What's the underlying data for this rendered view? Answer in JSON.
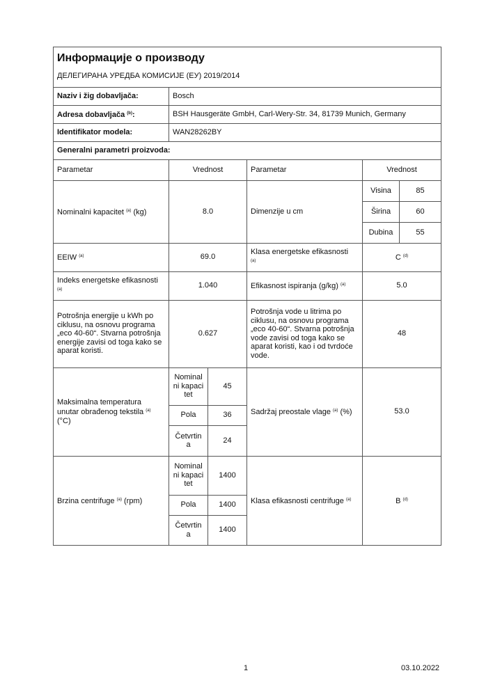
{
  "title": "Информације о производу",
  "regulation": "ДЕЛЕГИРАНА УРЕДБА КОМИСИЈЕ (ЕУ) 2019/2014",
  "supplier": {
    "name_label": "Naziv i žig dobavljača:",
    "name": "Bosch",
    "address_label": "Adresa dobavljača",
    "address_note": "(b)",
    "address": "BSH Hausgeräte GmbH, Carl-Wery-Str. 34, 81739 Munich, Germany",
    "model_label": "Identifikator modela:",
    "model": "WAN28262BY"
  },
  "general": {
    "heading": "Generalni parametri proizvoda:",
    "col_param": "Parametar",
    "col_value": "Vrednost"
  },
  "rows": {
    "capacity": {
      "label": "Nominalni kapacitet",
      "note": "(a)",
      "unit": "(kg)",
      "value": "8.0"
    },
    "dimensions": {
      "label": "Dimenzije u cm",
      "height_label": "Visina",
      "height": "85",
      "width_label": "Širina",
      "width": "60",
      "depth_label": "Dubina",
      "depth": "55"
    },
    "eeiw": {
      "label": "EEIW",
      "note": "(a)",
      "value": "69.0"
    },
    "energy_class": {
      "label": "Klasa energetske efikasnosti",
      "note": "(a)",
      "value": "C",
      "value_note": "(d)"
    },
    "eei": {
      "label": "Indeks energetske efikasnosti",
      "note": "(a)",
      "value": "1.040"
    },
    "rinse": {
      "label": "Efikasnost ispiranja (g/kg)",
      "note": "(a)",
      "value": "5.0"
    },
    "energy": {
      "label": "Potrošnja energije u kWh po ciklusu, na osnovu programa „eco 40-60“. Stvarna potrošnja energije zavisi od toga kako se aparat koristi.",
      "value": "0.627"
    },
    "water": {
      "label": "Potrošnja vode u litrima po ciklusu, na osnovu programa „eco 40-60“. Stvarna potrošnja vode zavisi od toga kako se aparat koristi, kao i od tvrdoće vode.",
      "value": "48"
    },
    "temp": {
      "label": "Maksimalna temperatura unutar obrađenog tekstila",
      "note": "(a)",
      "unit": "(°C)",
      "full_label": "Nominal ni kapaci tet",
      "full": "45",
      "half_label": "Pola",
      "half": "36",
      "quarter_label": "Četvrtin a",
      "quarter": "24"
    },
    "moisture": {
      "label": "Sadržaj preostale vlage",
      "note": "(a)",
      "unit": "(%)",
      "value": "53.0"
    },
    "spin": {
      "label": "Brzina centrifuge",
      "note": "(a)",
      "unit": "(rpm)",
      "full_label": "Nominal ni kapaci tet",
      "full": "1400",
      "half_label": "Pola",
      "half": "1400",
      "quarter_label": "Četvrtin a",
      "quarter": "1400"
    },
    "spin_class": {
      "label": "Klasa efikasnosti centrifuge",
      "note": "(a)",
      "value": "B",
      "value_note": "(d)"
    }
  },
  "footer": {
    "page": "1",
    "date": "03.10.2022"
  }
}
